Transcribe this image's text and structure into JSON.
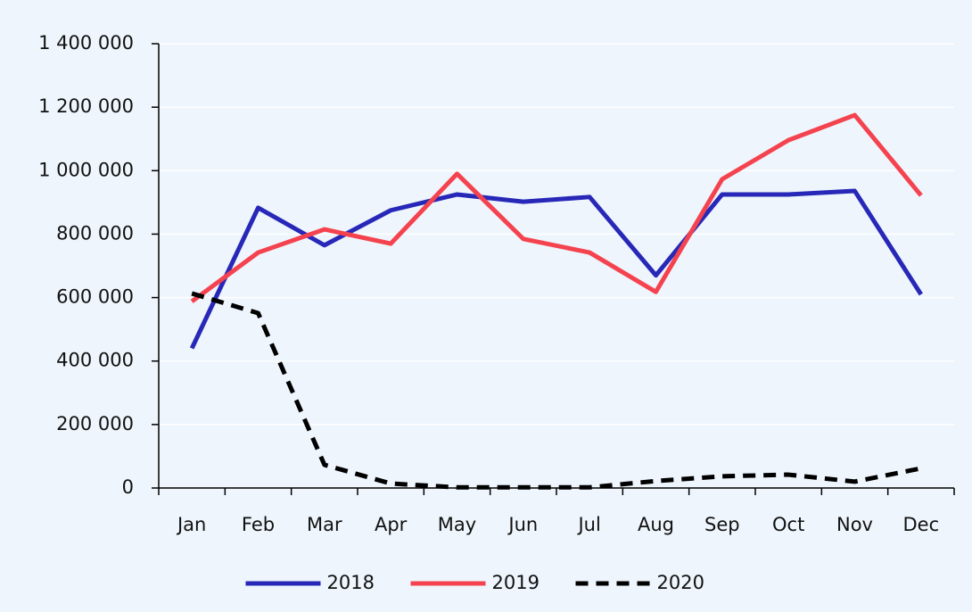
{
  "chart_data": {
    "type": "line",
    "categories": [
      "Jan",
      "Feb",
      "Mar",
      "Apr",
      "May",
      "Jun",
      "Jul",
      "Aug",
      "Sep",
      "Oct",
      "Nov",
      "Dec"
    ],
    "series": [
      {
        "name": "2018",
        "color": "#2828b8",
        "dashed": false,
        "values": [
          440000,
          883000,
          765000,
          875000,
          925000,
          902000,
          917000,
          670000,
          925000,
          925000,
          936000,
          610000
        ]
      },
      {
        "name": "2019",
        "color": "#f4434f",
        "dashed": false,
        "values": [
          588000,
          742000,
          815000,
          770000,
          990000,
          785000,
          742000,
          618000,
          973000,
          1096000,
          1175000,
          922000
        ]
      },
      {
        "name": "2020",
        "color": "#000000",
        "dashed": true,
        "values": [
          613000,
          551000,
          73000,
          14000,
          2000,
          2000,
          2000,
          22000,
          37000,
          42000,
          20000,
          62000
        ]
      }
    ],
    "ylim": [
      0,
      1400000
    ],
    "yticks": [
      0,
      {
        "value": 200000,
        "label": "200 000"
      },
      {
        "value": 400000,
        "label": "400 000"
      },
      {
        "value": 600000,
        "label": "600 000"
      },
      {
        "value": 800000,
        "label": "800 000"
      },
      {
        "value": 1000000,
        "label": "1 000 000"
      },
      {
        "value": 1200000,
        "label": "1 200 000"
      },
      {
        "value": 1400000,
        "label": "1 400 000"
      }
    ],
    "grid": true,
    "legend": "bottom"
  }
}
